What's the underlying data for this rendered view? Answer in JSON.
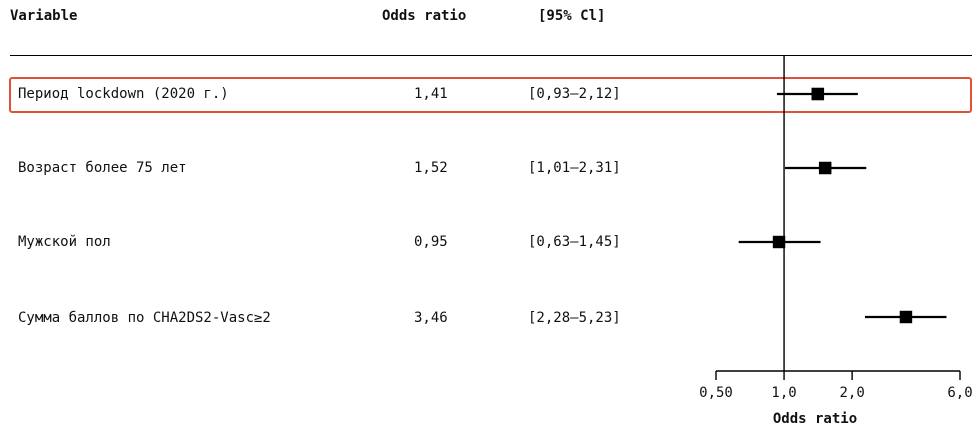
{
  "headers": {
    "variable": "Variable",
    "odds_ratio": "Odds ratio",
    "ci": "[95% Cl]"
  },
  "rows": [
    {
      "label": "Период lockdown (2020 г.)",
      "or": "1,41",
      "ci": "[0,93–2,12]"
    },
    {
      "label": "Возраст более 75 лет",
      "or": "1,52",
      "ci": "[1,01–2,31]"
    },
    {
      "label": "Мужской пол",
      "or": "0,95",
      "ci": "[0,63–1,45]"
    },
    {
      "label": "Сумма баллов по CHA2DS2-Vasc≥2",
      "or": "3,46",
      "ci": "[2,28–5,23]"
    }
  ],
  "highlight_color": "#e0513a",
  "chart_data": {
    "type": "scatter",
    "subtype": "forest-plot",
    "scale": "log",
    "categories": [
      "Период lockdown (2020 г.)",
      "Возраст более 75 лет",
      "Мужской пол",
      "Сумма баллов по CHA2DS2-Vasc≥2"
    ],
    "points": [
      {
        "or": 1.41,
        "lower": 0.93,
        "upper": 2.12
      },
      {
        "or": 1.52,
        "lower": 1.01,
        "upper": 2.31
      },
      {
        "or": 0.95,
        "lower": 0.63,
        "upper": 1.45
      },
      {
        "or": 3.46,
        "lower": 2.28,
        "upper": 5.23
      }
    ],
    "reference_line": 1.0,
    "xlim": [
      0.5,
      6.0
    ],
    "ticks": [
      0.5,
      1.0,
      2.0,
      6.0
    ],
    "tick_labels": [
      "0,50",
      "1,0",
      "2,0",
      "6,0"
    ],
    "xlabel": "Odds ratio"
  }
}
